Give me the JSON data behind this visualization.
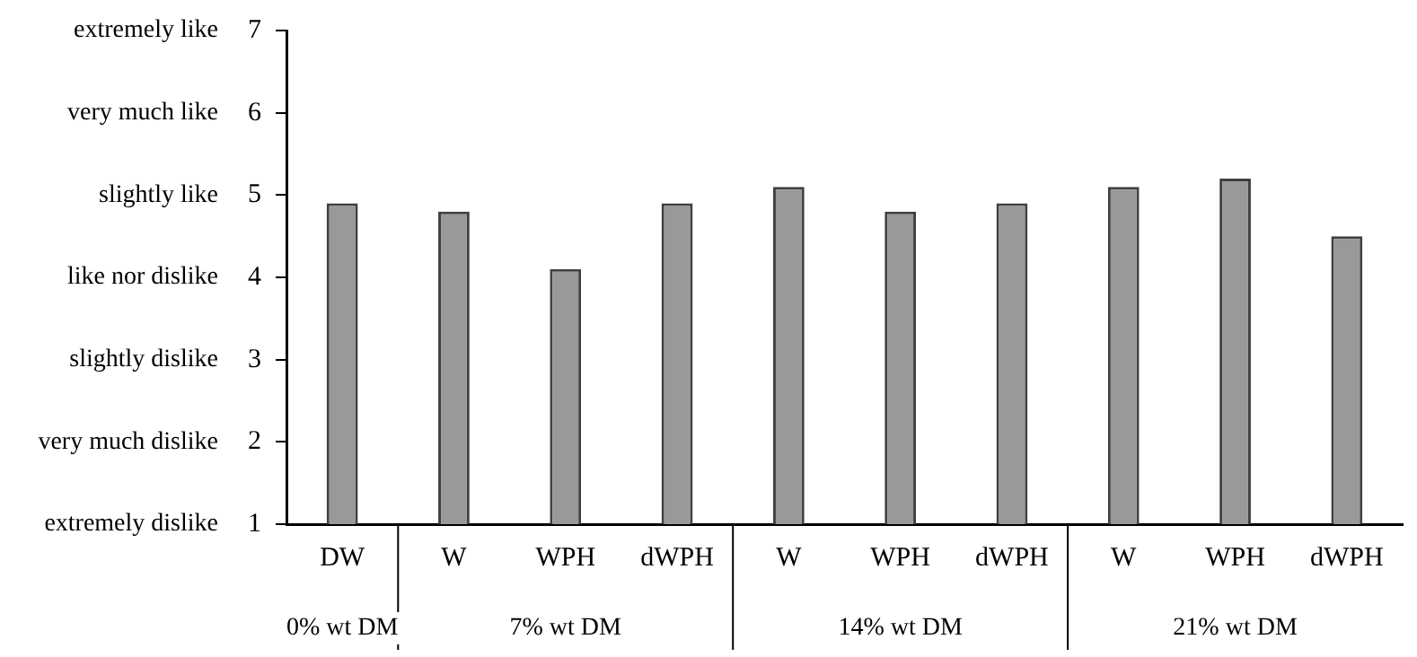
{
  "chart_data": {
    "type": "bar",
    "categories": [
      "DW",
      "W",
      "WPH",
      "dWPH",
      "W",
      "WPH",
      "dWPH",
      "W",
      "WPH",
      "dWPH"
    ],
    "values": [
      4.9,
      4.8,
      4.1,
      4.9,
      5.1,
      4.8,
      4.9,
      5.1,
      5.2,
      4.5
    ],
    "color": "#999999",
    "ylim": [
      1,
      7
    ],
    "yticks": [
      1,
      2,
      3,
      4,
      5,
      6,
      7
    ],
    "annotations": [
      "extremely dislike",
      "very much dislike",
      "slightly dislike",
      "like nor dislike",
      "slightly like",
      "very much like",
      "extremely like",
      "0% wt DM",
      "7% wt DM",
      "14% wt DM",
      "21% wt DM"
    ],
    "grid": false,
    "legend": false
  }
}
